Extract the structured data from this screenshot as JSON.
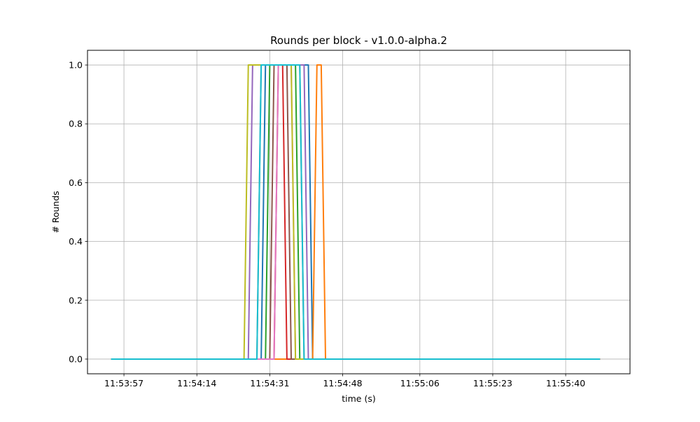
{
  "chart_data": {
    "type": "line",
    "title": "Rounds per block  -  v1.0.0-alpha.2",
    "xlabel": "time (s)",
    "ylabel": "# Rounds",
    "x_range": [
      "11:53:48.5",
      "11:55:55"
    ],
    "ylim": [
      -0.05,
      1.05
    ],
    "grid": true,
    "x_ticks": [
      "11:53:57",
      "11:54:14",
      "11:54:31",
      "11:54:48",
      "11:55:06",
      "11:55:23",
      "11:55:40"
    ],
    "y_ticks": [
      "0.0",
      "0.2",
      "0.4",
      "0.6",
      "0.8",
      "1.0"
    ],
    "series": [
      {
        "color": "#1f77b4",
        "x": [
          "11:53:54",
          "11:54:29",
          "11:54:30",
          "11:54:40",
          "11:54:41",
          "11:55:48"
        ],
        "y": [
          0,
          0,
          1,
          1,
          0,
          0
        ]
      },
      {
        "color": "#ff7f0e",
        "x": [
          "11:53:54",
          "11:54:41",
          "11:54:42",
          "11:54:43",
          "11:54:44",
          "11:55:48"
        ],
        "y": [
          0,
          0,
          1,
          1,
          0,
          0
        ]
      },
      {
        "color": "#2ca02c",
        "x": [
          "11:53:54",
          "11:54:30",
          "11:54:31",
          "11:54:37",
          "11:54:38",
          "11:55:48"
        ],
        "y": [
          0,
          0,
          1,
          1,
          0,
          0
        ]
      },
      {
        "color": "#d62728",
        "x": [
          "11:53:54",
          "11:54:32",
          "11:54:33",
          "11:54:34",
          "11:54:35",
          "11:55:48"
        ],
        "y": [
          0,
          0,
          1,
          1,
          0,
          0
        ]
      },
      {
        "color": "#9467bd",
        "x": [
          "11:53:54",
          "11:54:26",
          "11:54:27",
          "11:54:39",
          "11:54:40",
          "11:55:48"
        ],
        "y": [
          0,
          0,
          1,
          1,
          0,
          0
        ]
      },
      {
        "color": "#8c564b",
        "x": [
          "11:53:54",
          "11:54:31",
          "11:54:32",
          "11:54:35",
          "11:54:36",
          "11:55:48"
        ],
        "y": [
          0,
          0,
          1,
          1,
          0,
          0
        ]
      },
      {
        "color": "#e377c2",
        "x": [
          "11:53:54",
          "11:54:32",
          "11:54:33",
          "11:54:36",
          "11:54:37",
          "11:55:48"
        ],
        "y": [
          0,
          0,
          1,
          1,
          0,
          0
        ]
      },
      {
        "color": "#7f7f7f",
        "x": [
          "11:53:54",
          "11:54:28",
          "11:54:29",
          "11:54:38",
          "11:54:39",
          "11:55:48"
        ],
        "y": [
          0,
          0,
          1,
          1,
          0,
          0
        ]
      },
      {
        "color": "#bcbd22",
        "x": [
          "11:53:54",
          "11:54:25",
          "11:54:26",
          "11:54:36",
          "11:54:37",
          "11:55:48"
        ],
        "y": [
          0,
          0,
          1,
          1,
          0,
          0
        ]
      },
      {
        "color": "#17becf",
        "x": [
          "11:53:54",
          "11:54:28",
          "11:54:29",
          "11:54:38",
          "11:54:39",
          "11:55:48"
        ],
        "y": [
          0,
          0,
          1,
          1,
          0,
          0
        ]
      }
    ]
  }
}
